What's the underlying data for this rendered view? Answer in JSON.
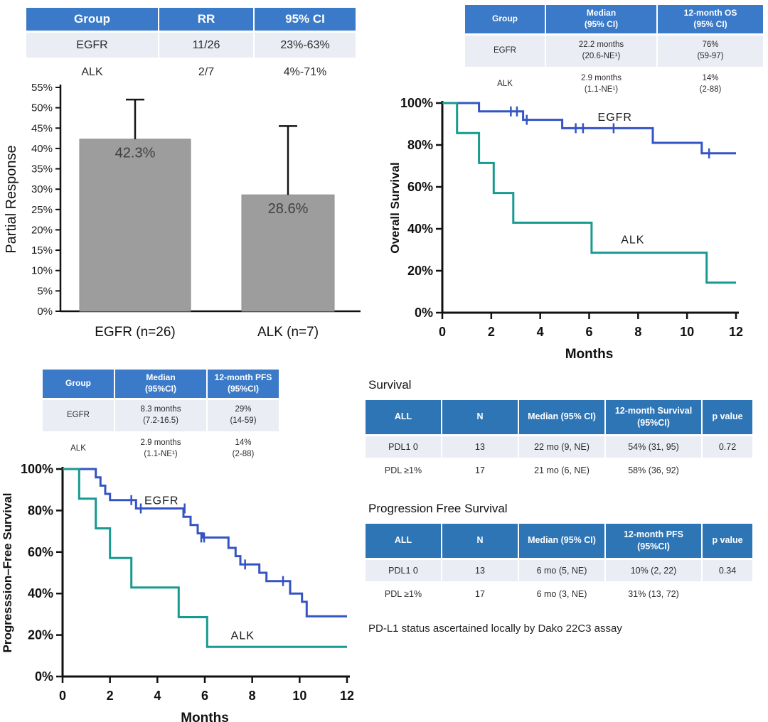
{
  "colors": {
    "table_header_left": "#3b7ac8",
    "table_header_right": "#2e75b6",
    "row_dark": "#d9ddeb",
    "row_light": "#ebedf5",
    "egfr": "#3454c4",
    "alk": "#179a90",
    "bar": "#9d9d9d",
    "axis": "#111111"
  },
  "tables": {
    "rr": {
      "headers": [
        "Group",
        "RR",
        "95% CI"
      ],
      "rows": [
        [
          "EGFR",
          "11/26",
          "23%-63%"
        ],
        [
          "ALK",
          "2/7",
          "4%-71%"
        ]
      ]
    },
    "os": {
      "headers": [
        "Group",
        "Median\n(95% CI)",
        "12-month OS\n(95% CI)"
      ],
      "rows": [
        [
          "EGFR",
          "22.2 months\n(20.6-NE¹)",
          "76%\n(59-97)"
        ],
        [
          "ALK",
          "2.9 months\n(1.1-NE¹)",
          "14%\n(2-88)"
        ]
      ]
    },
    "pfs": {
      "headers": [
        "Group",
        "Median\n(95%CI)",
        "12-month PFS\n(95%CI)"
      ],
      "rows": [
        [
          "EGFR",
          "8.3 months\n(7.2-16.5)",
          "29%\n(14-59)"
        ],
        [
          "ALK",
          "2.9 months\n(1.1-NE¹)",
          "14%\n(2-88)"
        ]
      ]
    },
    "pdl1_os": {
      "title": "Survival",
      "headers": [
        "ALL",
        "N",
        "Median (95% CI)",
        "12-month Survival\n(95%CI)",
        "p value"
      ],
      "rows": [
        [
          "PDL1 0",
          "13",
          "22 mo (9, NE)",
          "54% (31, 95)",
          "0.72"
        ],
        [
          "PDL ≥1%",
          "17",
          "21 mo (6, NE)",
          "58% (36, 92)",
          ""
        ]
      ]
    },
    "pdl1_pfs": {
      "title": "Progression Free Survival",
      "headers": [
        "ALL",
        "N",
        "Median (95% CI)",
        "12-month PFS\n(95%CI)",
        "p value"
      ],
      "rows": [
        [
          "PDL1 0",
          "13",
          "6 mo (5, NE)",
          "10% (2, 22)",
          "0.34"
        ],
        [
          "PDL ≥1%",
          "17",
          "6 mo (3, NE)",
          "31% (13, 72)",
          ""
        ]
      ]
    }
  },
  "footnote": "PD-L1 status ascertained locally by Dako 22C3 assay",
  "chart_data": [
    {
      "id": "bar_pr",
      "type": "bar",
      "title": "",
      "categories": [
        "EGFR (n=26)",
        "ALK (n=7)"
      ],
      "values": [
        42.3,
        28.6
      ],
      "error_high": [
        52.0,
        45.5
      ],
      "bar_labels": [
        "42.3%",
        "28.6%"
      ],
      "xlabel": "",
      "ylabel": "Partial Response",
      "ylim": [
        0,
        55
      ],
      "ytick_step": 5,
      "grid": false
    },
    {
      "id": "km_os",
      "type": "line",
      "title": "",
      "xlabel": "Months",
      "ylabel": "Overall Survival",
      "xlim": [
        0,
        12
      ],
      "ylim": [
        0,
        100
      ],
      "xticks": [
        0,
        2,
        4,
        6,
        8,
        10,
        12
      ],
      "yticks": [
        0,
        20,
        40,
        60,
        80,
        100
      ],
      "grid": false,
      "legend_position": "on-curve",
      "series": [
        {
          "name": "EGFR",
          "color_key": "egfr",
          "steps": [
            [
              0,
              100
            ],
            [
              1.5,
              100
            ],
            [
              1.5,
              96
            ],
            [
              3.3,
              96
            ],
            [
              3.3,
              92
            ],
            [
              4.9,
              92
            ],
            [
              4.9,
              88
            ],
            [
              8.6,
              88
            ],
            [
              8.6,
              81
            ],
            [
              10.6,
              81
            ],
            [
              10.6,
              76
            ],
            [
              12,
              76
            ]
          ],
          "censors": [
            [
              2.8,
              96
            ],
            [
              3.05,
              96
            ],
            [
              3.45,
              92
            ],
            [
              5.45,
              88
            ],
            [
              5.75,
              88
            ],
            [
              7.0,
              88
            ],
            [
              10.9,
              76
            ]
          ],
          "label_pos": [
            6.35,
            91.5
          ]
        },
        {
          "name": "ALK",
          "color_key": "alk",
          "steps": [
            [
              0,
              100
            ],
            [
              0.6,
              100
            ],
            [
              0.6,
              85.7
            ],
            [
              1.5,
              85.7
            ],
            [
              1.5,
              71.4
            ],
            [
              2.1,
              71.4
            ],
            [
              2.1,
              57.1
            ],
            [
              2.9,
              57.1
            ],
            [
              2.9,
              42.9
            ],
            [
              6.1,
              42.9
            ],
            [
              6.1,
              28.6
            ],
            [
              10.8,
              28.6
            ],
            [
              10.8,
              14.3
            ],
            [
              12,
              14.3
            ]
          ],
          "censors": [],
          "label_pos": [
            7.3,
            33
          ]
        }
      ]
    },
    {
      "id": "km_pfs",
      "type": "line",
      "title": "",
      "xlabel": "Months",
      "ylabel": "Progresssion–Free Survival",
      "xlim": [
        0,
        12
      ],
      "ylim": [
        0,
        100
      ],
      "xticks": [
        0,
        2,
        4,
        6,
        8,
        10,
        12
      ],
      "yticks": [
        0,
        20,
        40,
        60,
        80,
        100
      ],
      "grid": false,
      "legend_position": "on-curve",
      "series": [
        {
          "name": "EGFR",
          "color_key": "egfr",
          "steps": [
            [
              0,
              100
            ],
            [
              1.4,
              100
            ],
            [
              1.4,
              96
            ],
            [
              1.6,
              96
            ],
            [
              1.6,
              92
            ],
            [
              1.8,
              92
            ],
            [
              1.8,
              88
            ],
            [
              2.0,
              88
            ],
            [
              2.0,
              85
            ],
            [
              3.1,
              85
            ],
            [
              3.1,
              81
            ],
            [
              5.1,
              81
            ],
            [
              5.1,
              77
            ],
            [
              5.4,
              77
            ],
            [
              5.4,
              73
            ],
            [
              5.7,
              73
            ],
            [
              5.7,
              69
            ],
            [
              5.9,
              69
            ],
            [
              5.9,
              67
            ],
            [
              7.0,
              67
            ],
            [
              7.0,
              62
            ],
            [
              7.3,
              62
            ],
            [
              7.3,
              58
            ],
            [
              7.5,
              58
            ],
            [
              7.5,
              54
            ],
            [
              8.3,
              54
            ],
            [
              8.3,
              50
            ],
            [
              8.6,
              50
            ],
            [
              8.6,
              46
            ],
            [
              9.6,
              46
            ],
            [
              9.6,
              40
            ],
            [
              10.1,
              40
            ],
            [
              10.1,
              36
            ],
            [
              10.3,
              36
            ],
            [
              10.3,
              29
            ],
            [
              12,
              29
            ]
          ],
          "censors": [
            [
              2.9,
              85
            ],
            [
              3.3,
              81
            ],
            [
              5.15,
              81
            ],
            [
              5.85,
              67
            ],
            [
              5.97,
              67
            ],
            [
              7.7,
              54
            ],
            [
              9.3,
              46
            ]
          ],
          "label_pos": [
            3.45,
            83
          ]
        },
        {
          "name": "ALK",
          "color_key": "alk",
          "steps": [
            [
              0,
              100
            ],
            [
              0.7,
              100
            ],
            [
              0.7,
              85.7
            ],
            [
              1.4,
              85.7
            ],
            [
              1.4,
              71.4
            ],
            [
              2.0,
              71.4
            ],
            [
              2.0,
              57.1
            ],
            [
              2.9,
              57.1
            ],
            [
              2.9,
              42.9
            ],
            [
              4.9,
              42.9
            ],
            [
              4.9,
              28.6
            ],
            [
              6.1,
              28.6
            ],
            [
              6.1,
              14.3
            ],
            [
              12,
              14.3
            ]
          ],
          "censors": [],
          "label_pos": [
            7.1,
            18
          ]
        }
      ]
    }
  ]
}
